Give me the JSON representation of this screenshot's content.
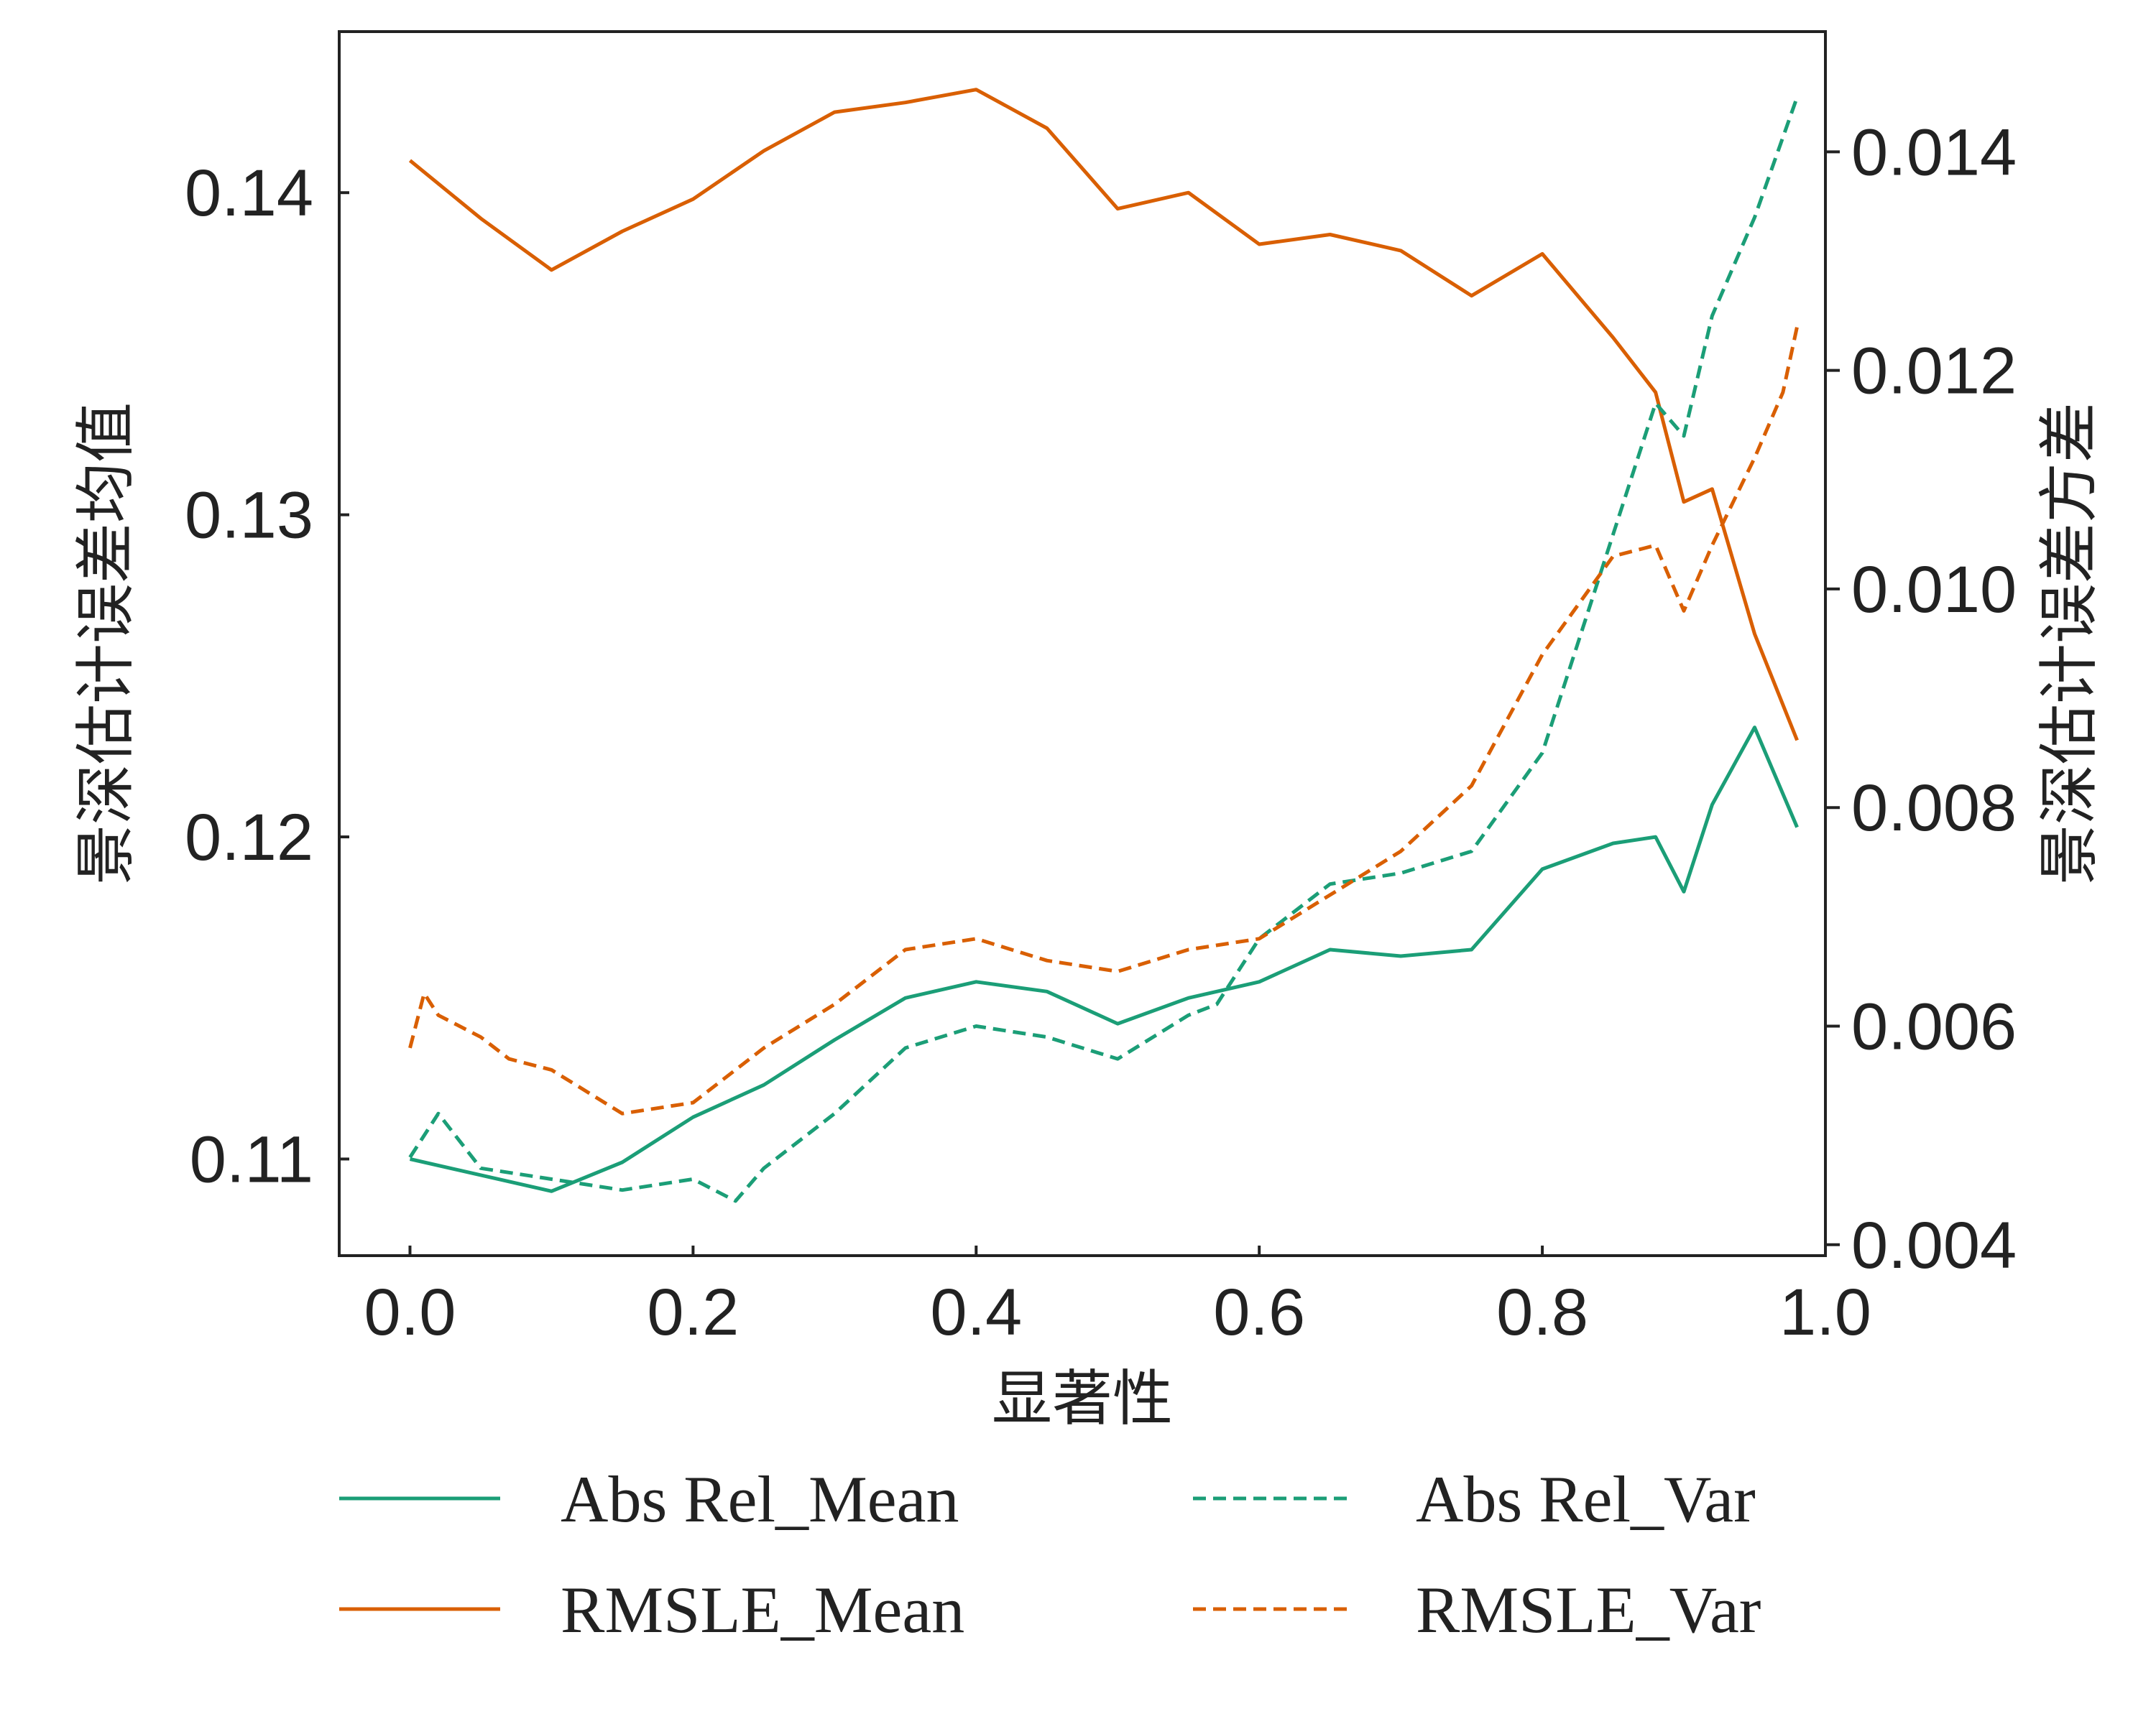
{
  "chart_data": {
    "type": "line",
    "title": "",
    "xlabel": "显著性",
    "ylabel_left": "景深估计误差均值",
    "ylabel_right": "景深估计误差方差",
    "xlim": [
      -0.05,
      1.0
    ],
    "ylim_left": [
      0.107,
      0.145
    ],
    "ylim_right": [
      0.0039,
      0.0151
    ],
    "xticks": [
      "0.0",
      "0.2",
      "0.4",
      "0.6",
      "0.8",
      "1.0"
    ],
    "yticks_left": [
      "0.11",
      "0.12",
      "0.13",
      "0.14"
    ],
    "yticks_right": [
      "0.004",
      "0.006",
      "0.008",
      "0.010",
      "0.012",
      "0.014"
    ],
    "legend_position": "bottom, two columns",
    "colors": {
      "abs_rel": "#1b9e77",
      "rmsle": "#d95f02"
    },
    "series": [
      {
        "name": "Abs Rel_Mean",
        "axis": "left",
        "style": "solid",
        "color": "#1b9e77",
        "x": [
          0.0,
          0.1,
          0.15,
          0.2,
          0.25,
          0.3,
          0.35,
          0.4,
          0.45,
          0.5,
          0.55,
          0.6,
          0.65,
          0.7,
          0.75,
          0.8,
          0.85,
          0.88,
          0.9,
          0.92,
          0.95,
          0.98
        ],
        "y": [
          0.11,
          0.109,
          0.1099,
          0.1113,
          0.1123,
          0.1137,
          0.115,
          0.1155,
          0.1152,
          0.1142,
          0.115,
          0.1155,
          0.1165,
          0.1163,
          0.1165,
          0.119,
          0.1198,
          0.12,
          0.1183,
          0.121,
          0.1234,
          0.1203
        ]
      },
      {
        "name": "RMSLE_Mean",
        "axis": "left",
        "style": "solid",
        "color": "#d95f02",
        "x": [
          0.0,
          0.05,
          0.1,
          0.15,
          0.2,
          0.25,
          0.3,
          0.35,
          0.4,
          0.45,
          0.5,
          0.55,
          0.6,
          0.65,
          0.7,
          0.75,
          0.8,
          0.85,
          0.88,
          0.9,
          0.92,
          0.95,
          0.98
        ],
        "y": [
          0.141,
          0.1392,
          0.1376,
          0.1388,
          0.1398,
          0.1413,
          0.1425,
          0.1428,
          0.1432,
          0.142,
          0.1395,
          0.14,
          0.1384,
          0.1387,
          0.1382,
          0.1368,
          0.1381,
          0.1355,
          0.1338,
          0.1304,
          0.1308,
          0.1263,
          0.123
        ]
      },
      {
        "name": "Abs Rel_Var",
        "axis": "right",
        "style": "dashed",
        "color": "#1b9e77",
        "x": [
          0.0,
          0.02,
          0.05,
          0.1,
          0.15,
          0.2,
          0.23,
          0.25,
          0.3,
          0.35,
          0.4,
          0.45,
          0.5,
          0.55,
          0.57,
          0.6,
          0.65,
          0.7,
          0.75,
          0.8,
          0.85,
          0.88,
          0.9,
          0.92,
          0.95,
          0.98
        ],
        "y": [
          0.0048,
          0.0052,
          0.0047,
          0.0046,
          0.0045,
          0.0046,
          0.0044,
          0.0047,
          0.0052,
          0.0058,
          0.006,
          0.0059,
          0.0057,
          0.0061,
          0.0062,
          0.0068,
          0.0073,
          0.0074,
          0.0076,
          0.0085,
          0.0105,
          0.0117,
          0.0114,
          0.0125,
          0.0134,
          0.0145
        ]
      },
      {
        "name": "RMSLE_Var",
        "axis": "right",
        "style": "dashed",
        "color": "#d95f02",
        "x": [
          0.0,
          0.01,
          0.02,
          0.05,
          0.07,
          0.1,
          0.15,
          0.2,
          0.25,
          0.3,
          0.35,
          0.4,
          0.45,
          0.5,
          0.55,
          0.6,
          0.65,
          0.7,
          0.75,
          0.8,
          0.85,
          0.88,
          0.9,
          0.92,
          0.95,
          0.97,
          0.98
        ],
        "y": [
          0.0058,
          0.0063,
          0.0061,
          0.0059,
          0.0057,
          0.0056,
          0.0052,
          0.0053,
          0.0058,
          0.0062,
          0.0067,
          0.0068,
          0.0066,
          0.0065,
          0.0067,
          0.0068,
          0.0072,
          0.0076,
          0.0082,
          0.0094,
          0.0103,
          0.0104,
          0.0098,
          0.0104,
          0.0112,
          0.0118,
          0.0124
        ]
      }
    ]
  }
}
